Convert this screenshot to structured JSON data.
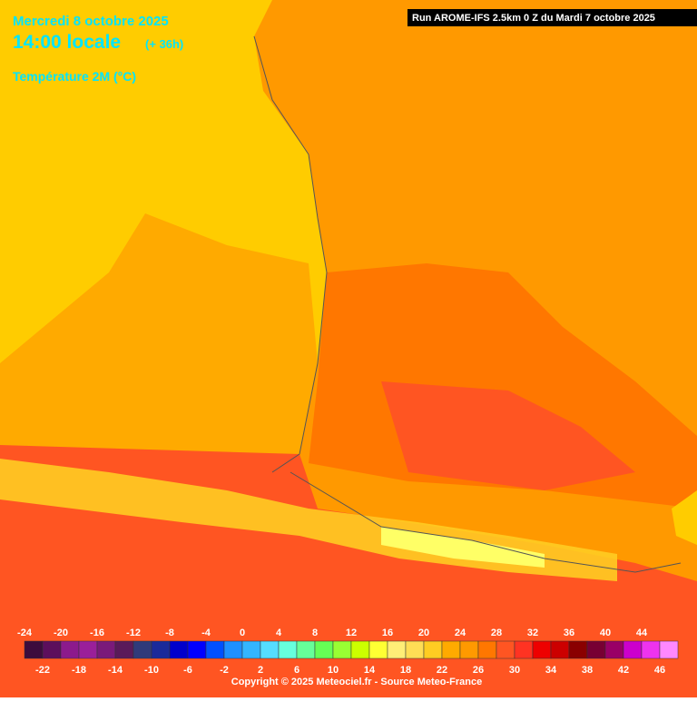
{
  "header": {
    "date": "Mercredi 8 octobre 2025",
    "time": "14:00 locale",
    "lead": "(+ 36h)",
    "field": "Température 2M (°C)",
    "run": "Run AROME-IFS 2.5km 0 Z du Mardi 7 octobre 2025"
  },
  "legend": {
    "scale": [
      {
        "value": -24,
        "color": "#3d0c3d"
      },
      {
        "value": -22,
        "color": "#5c0f5c"
      },
      {
        "value": -20,
        "color": "#8c1a8c"
      },
      {
        "value": -18,
        "color": "#9a1f9a"
      },
      {
        "value": -16,
        "color": "#7a1a7a"
      },
      {
        "value": -14,
        "color": "#5a1a5a"
      },
      {
        "value": -12,
        "color": "#303a7a"
      },
      {
        "value": -10,
        "color": "#1a2a9a"
      },
      {
        "value": -8,
        "color": "#0000cc"
      },
      {
        "value": -6,
        "color": "#0000ff"
      },
      {
        "value": -4,
        "color": "#0050ff"
      },
      {
        "value": -2,
        "color": "#1e90ff"
      },
      {
        "value": 0,
        "color": "#33b5ff"
      },
      {
        "value": 2,
        "color": "#55ddff"
      },
      {
        "value": 4,
        "color": "#66ffdd"
      },
      {
        "value": 6,
        "color": "#66ff99"
      },
      {
        "value": 8,
        "color": "#66ff55"
      },
      {
        "value": 10,
        "color": "#99ff33"
      },
      {
        "value": 12,
        "color": "#ccff00"
      },
      {
        "value": 14,
        "color": "#ffff33"
      },
      {
        "value": 16,
        "color": "#ffee77"
      },
      {
        "value": 18,
        "color": "#ffdd55"
      },
      {
        "value": 20,
        "color": "#ffcc22"
      },
      {
        "value": 22,
        "color": "#ffaa00"
      },
      {
        "value": 24,
        "color": "#ff9900"
      },
      {
        "value": 26,
        "color": "#ff7700"
      },
      {
        "value": 28,
        "color": "#ff5522"
      },
      {
        "value": 30,
        "color": "#ff3322"
      },
      {
        "value": 32,
        "color": "#ee0000"
      },
      {
        "value": 34,
        "color": "#cc0000"
      },
      {
        "value": 36,
        "color": "#8a0000"
      },
      {
        "value": 38,
        "color": "#770033"
      },
      {
        "value": 40,
        "color": "#990066"
      },
      {
        "value": 42,
        "color": "#cc00cc"
      },
      {
        "value": 44,
        "color": "#ee33ee"
      },
      {
        "value": 46,
        "color": "#ff88ff"
      }
    ]
  },
  "footer": {
    "copyright": "Copyright © 2025 Meteociel.fr - Source Meteo-France"
  }
}
